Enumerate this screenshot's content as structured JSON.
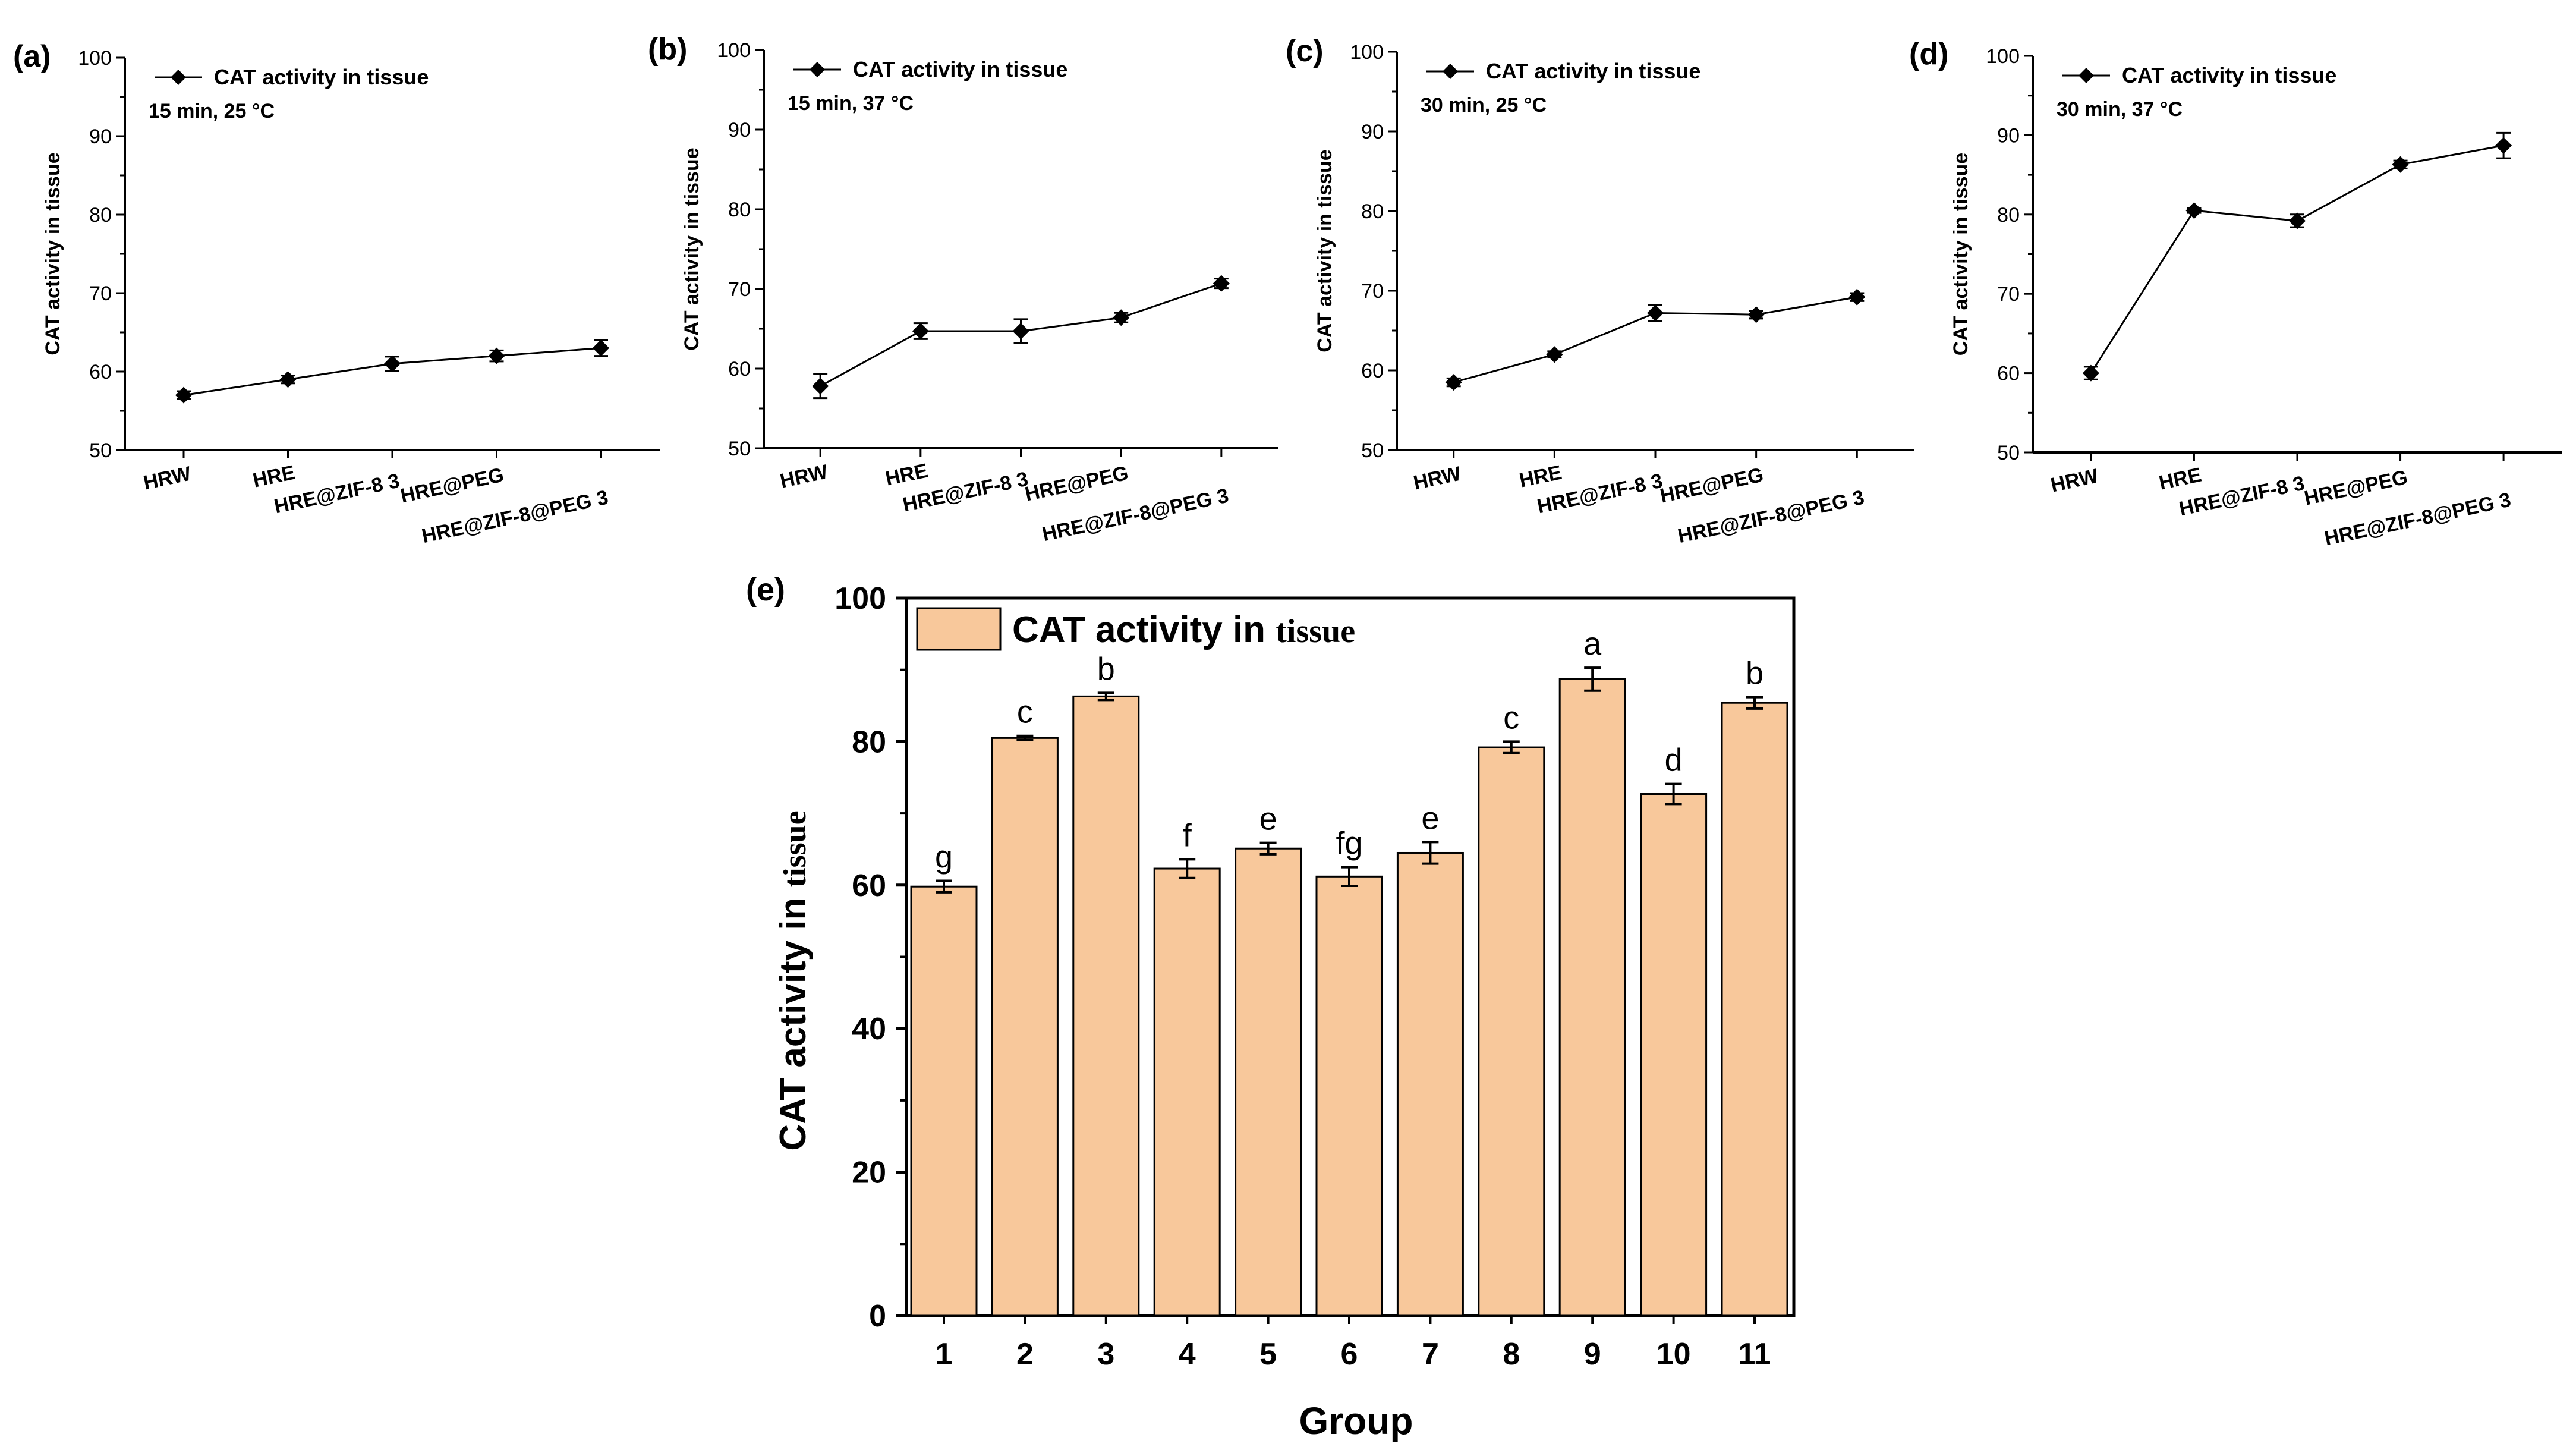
{
  "chart_data": [
    {
      "panel": "(a)",
      "type": "line",
      "categories": [
        "HRW",
        "HRE",
        "HRE@ZIF-8 3",
        "HRE@PEG",
        "HRE@ZIF-8@PEG 3"
      ],
      "series": [
        {
          "name": "CAT activity in tissue",
          "values": [
            57.0,
            59.0,
            61.0,
            62.0,
            63.0
          ],
          "errors": [
            0.5,
            0.5,
            0.9,
            0.7,
            1.0
          ]
        }
      ],
      "annotation": "15 min, 25 °C",
      "ylabel": "CAT activity in tissue",
      "yticks": [
        "50",
        "60",
        "70",
        "80",
        "90",
        "100"
      ],
      "ylim": [
        50,
        100
      ]
    },
    {
      "panel": "(b)",
      "type": "line",
      "categories": [
        "HRW",
        "HRE",
        "HRE@ZIF-8 3",
        "HRE@PEG",
        "HRE@ZIF-8@PEG 3"
      ],
      "series": [
        {
          "name": "CAT activity in tissue",
          "values": [
            57.8,
            64.7,
            64.7,
            66.4,
            70.7
          ],
          "errors": [
            1.5,
            1.0,
            1.5,
            0.6,
            0.6
          ]
        }
      ],
      "annotation": "15 min, 37 °C",
      "ylabel": "CAT activity in tissue",
      "yticks": [
        "50",
        "60",
        "70",
        "80",
        "90",
        "100"
      ],
      "ylim": [
        50,
        100
      ]
    },
    {
      "panel": "(c)",
      "type": "line",
      "categories": [
        "HRW",
        "HRE",
        "HRE@ZIF-8 3",
        "HRE@PEG",
        "HRE@ZIF-8@PEG 3"
      ],
      "series": [
        {
          "name": "CAT activity in tissue",
          "values": [
            58.5,
            62.0,
            67.2,
            67.0,
            69.2
          ],
          "errors": [
            0.5,
            0.4,
            1.0,
            0.5,
            0.5
          ]
        }
      ],
      "annotation": "30 min, 25 °C",
      "ylabel": "CAT activity in tissue",
      "yticks": [
        "50",
        "60",
        "70",
        "80",
        "90",
        "100"
      ],
      "ylim": [
        50,
        100
      ]
    },
    {
      "panel": "(d)",
      "type": "line",
      "categories": [
        "HRW",
        "HRE",
        "HRE@ZIF-8 3",
        "HRE@PEG",
        "HRE@ZIF-8@PEG 3"
      ],
      "series": [
        {
          "name": "CAT activity in tissue",
          "values": [
            60.0,
            80.5,
            79.2,
            86.3,
            88.7
          ],
          "errors": [
            0.8,
            0.3,
            0.8,
            0.5,
            1.6
          ]
        }
      ],
      "annotation": "30 min, 37 °C",
      "ylabel": "CAT activity in tissue",
      "yticks": [
        "50",
        "60",
        "70",
        "80",
        "90",
        "100"
      ],
      "ylim": [
        50,
        100
      ]
    },
    {
      "panel": "(e)",
      "type": "bar",
      "categories": [
        "1",
        "2",
        "3",
        "4",
        "5",
        "6",
        "7",
        "8",
        "9",
        "10",
        "11"
      ],
      "series": [
        {
          "name": "CAT activity in tissue",
          "values": [
            59.8,
            80.5,
            86.3,
            62.3,
            65.1,
            61.2,
            64.5,
            79.2,
            88.7,
            72.7,
            85.4
          ],
          "errors": [
            0.8,
            0.3,
            0.5,
            1.3,
            0.8,
            1.3,
            1.5,
            0.8,
            1.6,
            1.4,
            0.8
          ]
        }
      ],
      "sig_labels": [
        "g",
        "c",
        "b",
        "f",
        "e",
        "fg",
        "e",
        "c",
        "a",
        "d",
        "b"
      ],
      "legend_main": "CAT activity in",
      "legend_tail": "tissue",
      "ylabel_main": "CAT activity in",
      "ylabel_tail": "tissue",
      "xlabel": "Group",
      "yticks": [
        "0",
        "20",
        "40",
        "60",
        "80",
        "100"
      ],
      "ylim": [
        0,
        100
      ],
      "bar_color": "#f8c89b"
    }
  ]
}
